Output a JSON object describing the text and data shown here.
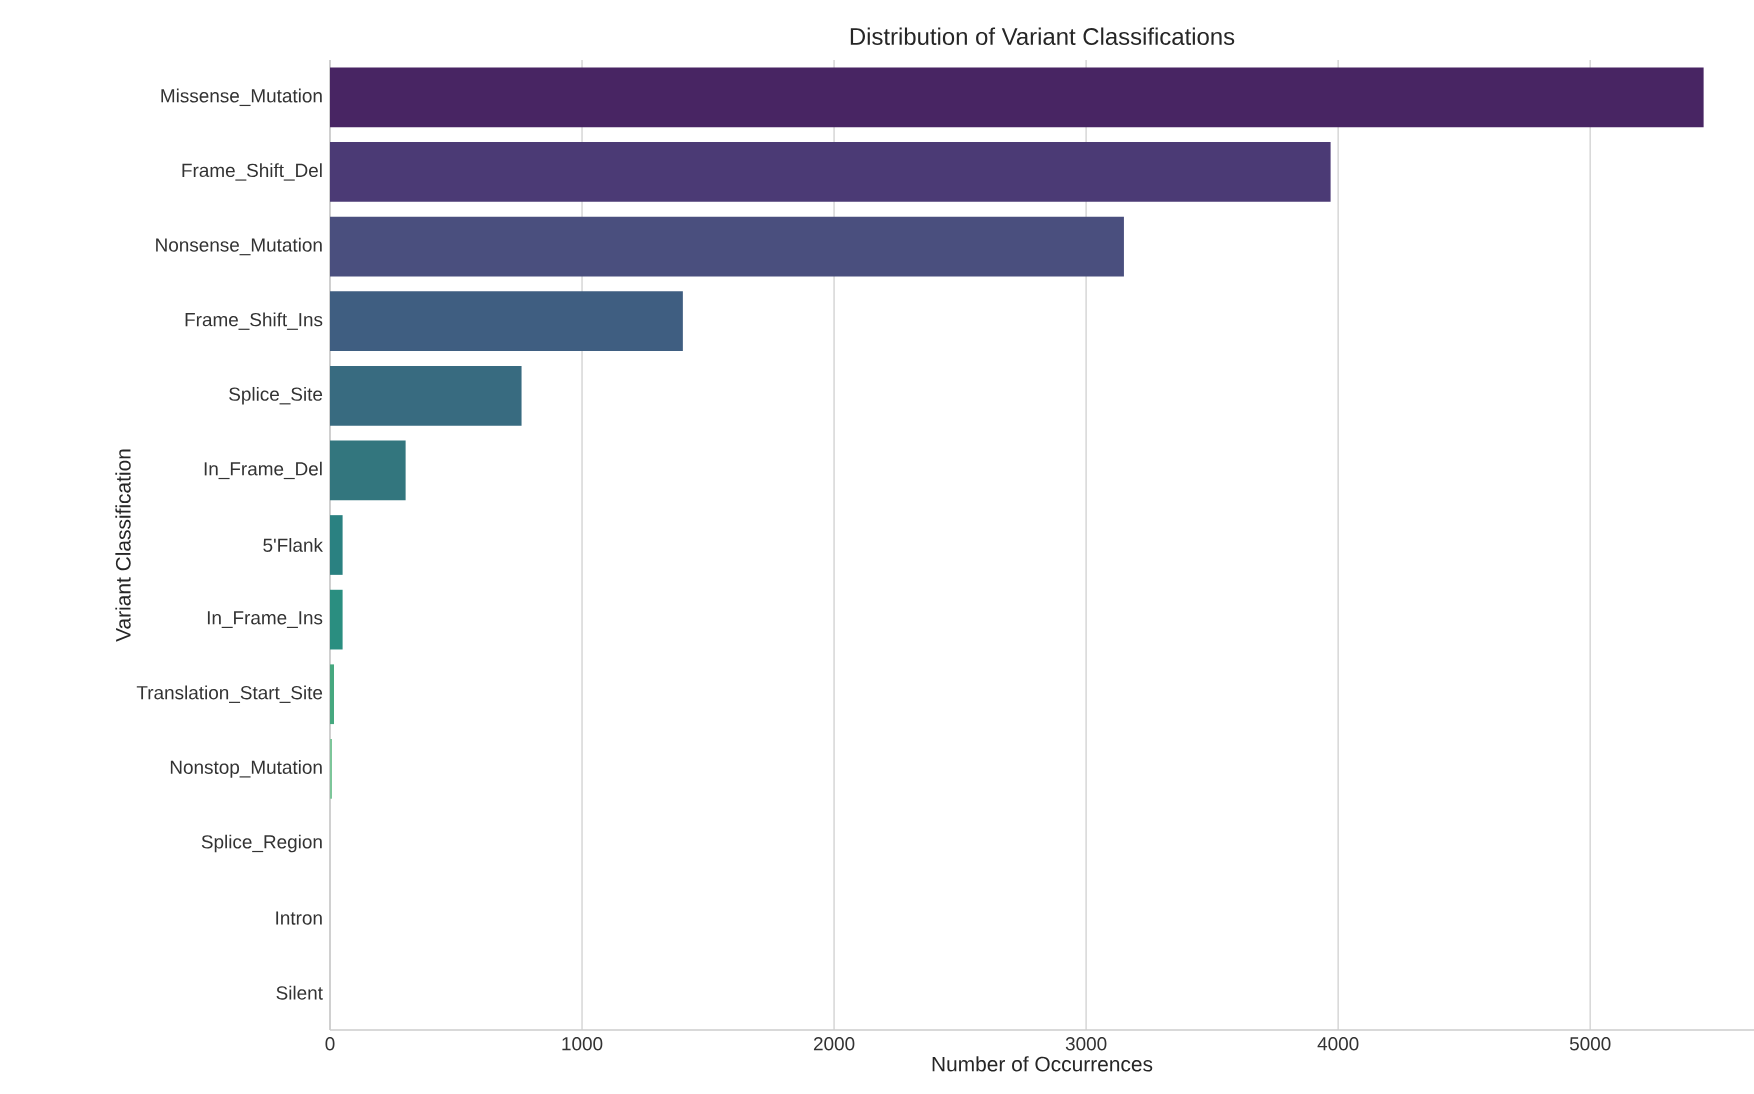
{
  "chart_data": {
    "type": "bar",
    "orientation": "horizontal",
    "title": "Distribution of Variant Classifications",
    "xlabel": "Number of Occurrences",
    "ylabel": "Variant Classification",
    "categories": [
      "Missense_Mutation",
      "Frame_Shift_Del",
      "Nonsense_Mutation",
      "Frame_Shift_Ins",
      "Splice_Site",
      "In_Frame_Del",
      "5'Flank",
      "In_Frame_Ins",
      "Translation_Start_Site",
      "Nonstop_Mutation",
      "Splice_Region",
      "Intron",
      "Silent"
    ],
    "values": [
      5450,
      3970,
      3150,
      1400,
      760,
      300,
      50,
      50,
      16,
      8,
      null,
      null,
      null
    ],
    "colors": [
      "#482563",
      "#4b3a75",
      "#4a4f7e",
      "#3f5e81",
      "#386b80",
      "#33767e",
      "#2a8181",
      "#2a8e80",
      "#46a87f",
      "#7dc69a",
      "#a3d6ad",
      "#c5e6c4",
      "#ddf0dd"
    ],
    "xlim": [
      0,
      5650
    ],
    "xticks": [
      0,
      1000,
      2000,
      3000,
      4000,
      5000
    ],
    "grid": "x"
  }
}
